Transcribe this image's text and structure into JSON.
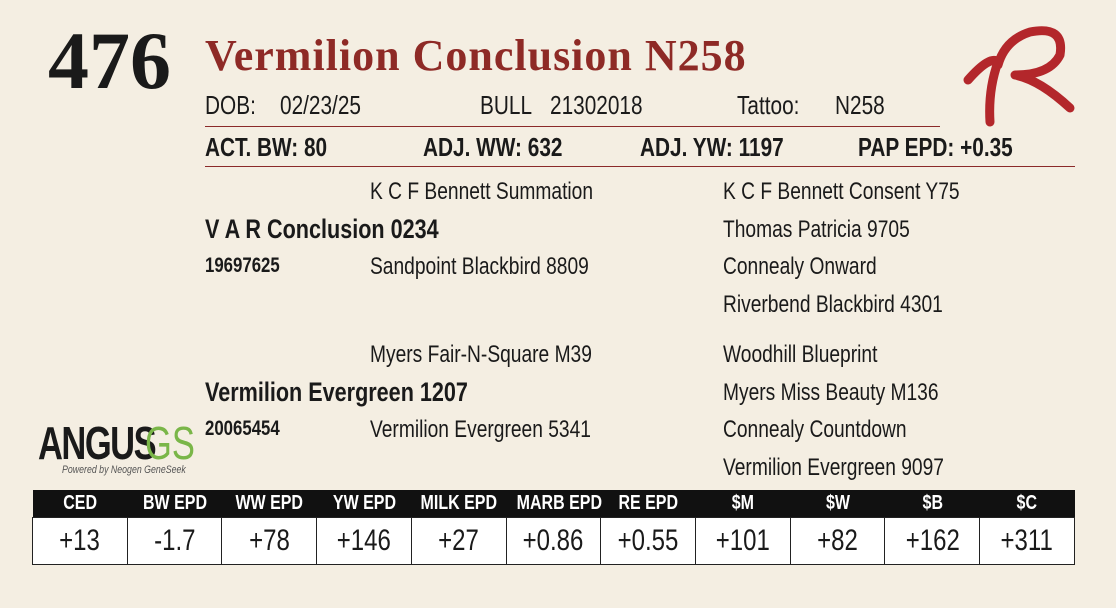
{
  "lot": "476",
  "name": "Vermilion Conclusion N258",
  "info": {
    "dob_label": "DOB:",
    "dob": "02/23/25",
    "sex": "BULL",
    "registration": "21302018",
    "tattoo_label": "Tattoo:",
    "tattoo": "N258"
  },
  "performance": [
    "ACT. BW: 80",
    "ADJ. WW: 632",
    "ADJ. YW: 1197",
    "PAP EPD: +0.35"
  ],
  "pedigree": {
    "sire": {
      "name": "V A R Conclusion 0234",
      "registration": "19697625",
      "sire": "K C F Bennett Summation",
      "dam": "Sandpoint Blackbird 8809",
      "grandparents": [
        "K C F Bennett Consent Y75",
        "Thomas Patricia 9705",
        "Connealy Onward",
        "Riverbend Blackbird 4301"
      ]
    },
    "dam": {
      "name": "Vermilion Evergreen 1207",
      "registration": "20065454",
      "sire": "Myers Fair-N-Square M39",
      "dam": "Vermilion Evergreen 5341",
      "grandparents": [
        "Woodhill Blueprint",
        "Myers Miss Beauty M136",
        "Connealy Countdown",
        "Vermilion Evergreen 9097"
      ]
    }
  },
  "logo": {
    "brand": "ANGUS",
    "suffix": "GS",
    "tagline": "Powered by Neogen GeneSeek"
  },
  "epd_table": {
    "headers": [
      "CED",
      "BW EPD",
      "WW EPD",
      "YW EPD",
      "MILK EPD",
      "MARB EPD",
      "RE EPD",
      "$M",
      "$W",
      "$B",
      "$C"
    ],
    "values": [
      "+13",
      "-1.7",
      "+78",
      "+146",
      "+27",
      "+0.86",
      "+0.55",
      "+101",
      "+82",
      "+162",
      "+311"
    ]
  }
}
